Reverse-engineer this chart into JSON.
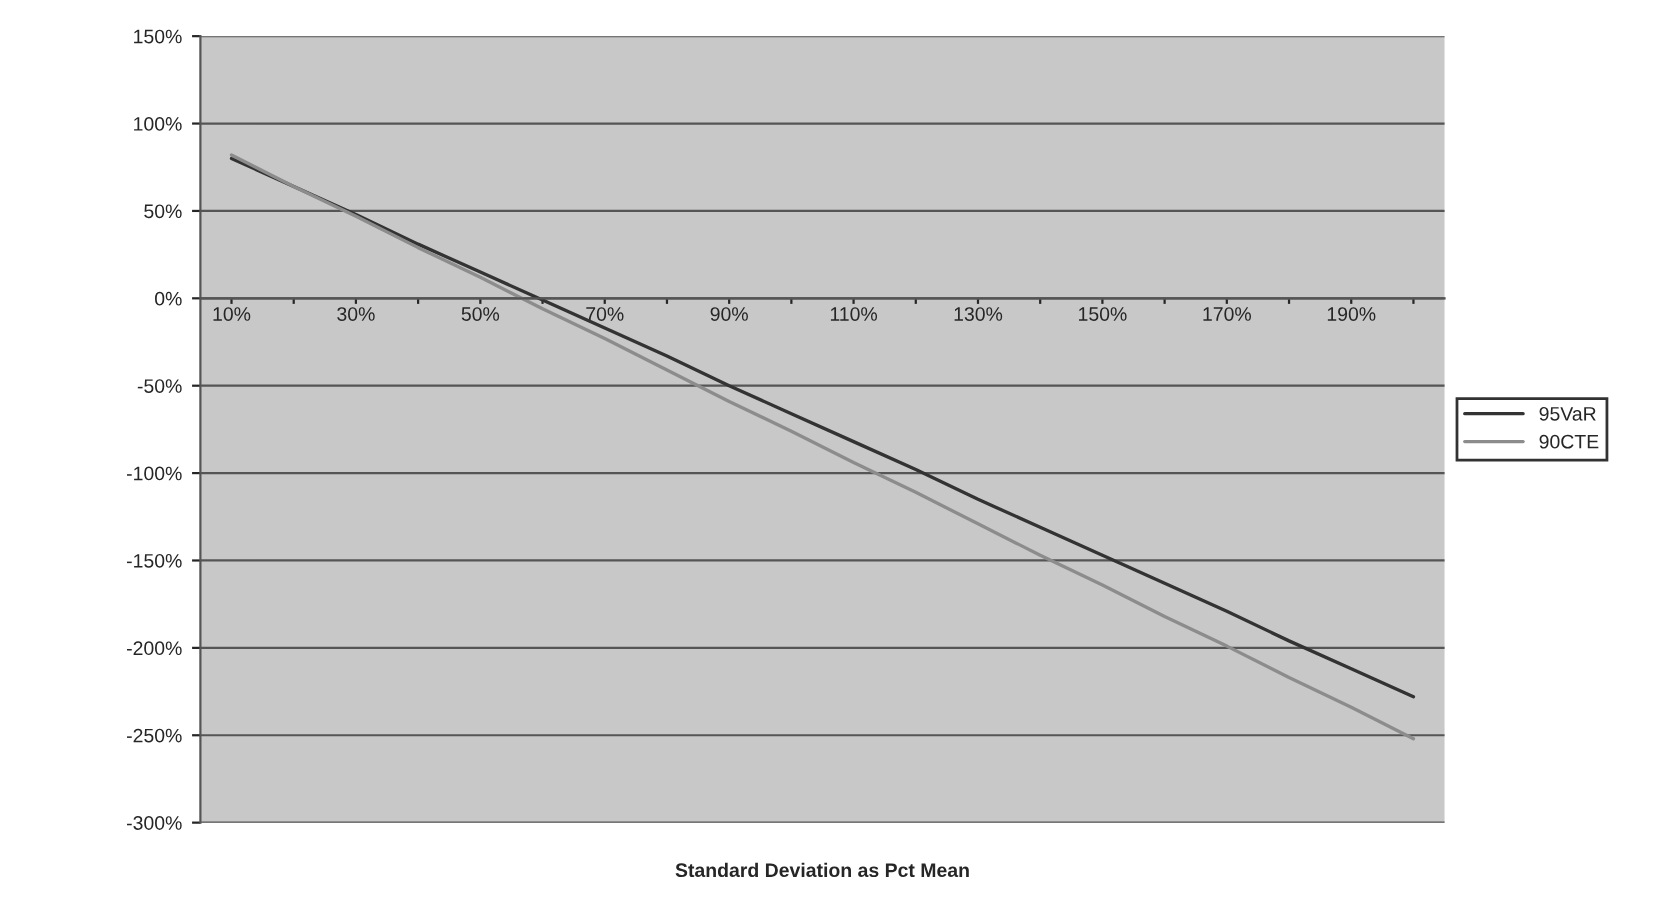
{
  "chart_data": {
    "type": "line",
    "xlabel": "Standard Deviation as Pct Mean",
    "categories": [
      "10%",
      null,
      "30%",
      null,
      "50%",
      null,
      "70%",
      null,
      "90%",
      null,
      "110%",
      null,
      "130%",
      null,
      "150%",
      null,
      "170%",
      null,
      "190%",
      null
    ],
    "series": [
      {
        "name": "95VaR",
        "color": "#333333",
        "values": [
          80,
          64,
          48,
          31,
          15,
          -1,
          -17,
          -33,
          -50,
          -66,
          -82,
          -98,
          -115,
          -131,
          -147,
          -163,
          -179,
          -196,
          -212,
          -228
        ]
      },
      {
        "name": "90CTE",
        "color": "#8c8c8c",
        "values": [
          82,
          64,
          47,
          29,
          12,
          -6,
          -23,
          -41,
          -59,
          -76,
          -94,
          -111,
          -129,
          -147,
          -164,
          -182,
          -199,
          -217,
          -234,
          -252
        ]
      }
    ],
    "ylim": [
      -300,
      150
    ],
    "yticks": [
      {
        "value": -300,
        "label": "-300%"
      },
      {
        "value": -250,
        "label": "-250%"
      },
      {
        "value": -200,
        "label": "-200%"
      },
      {
        "value": -150,
        "label": "-150%"
      },
      {
        "value": -100,
        "label": "-100%"
      },
      {
        "value": -50,
        "label": "-50%"
      },
      {
        "value": 0,
        "label": "0%"
      },
      {
        "value": 50,
        "label": "50%"
      },
      {
        "value": 100,
        "label": "100%"
      },
      {
        "value": 150,
        "label": "150%"
      }
    ],
    "grid": "y",
    "legend": "right",
    "marker": "none",
    "line_style": "solid"
  }
}
